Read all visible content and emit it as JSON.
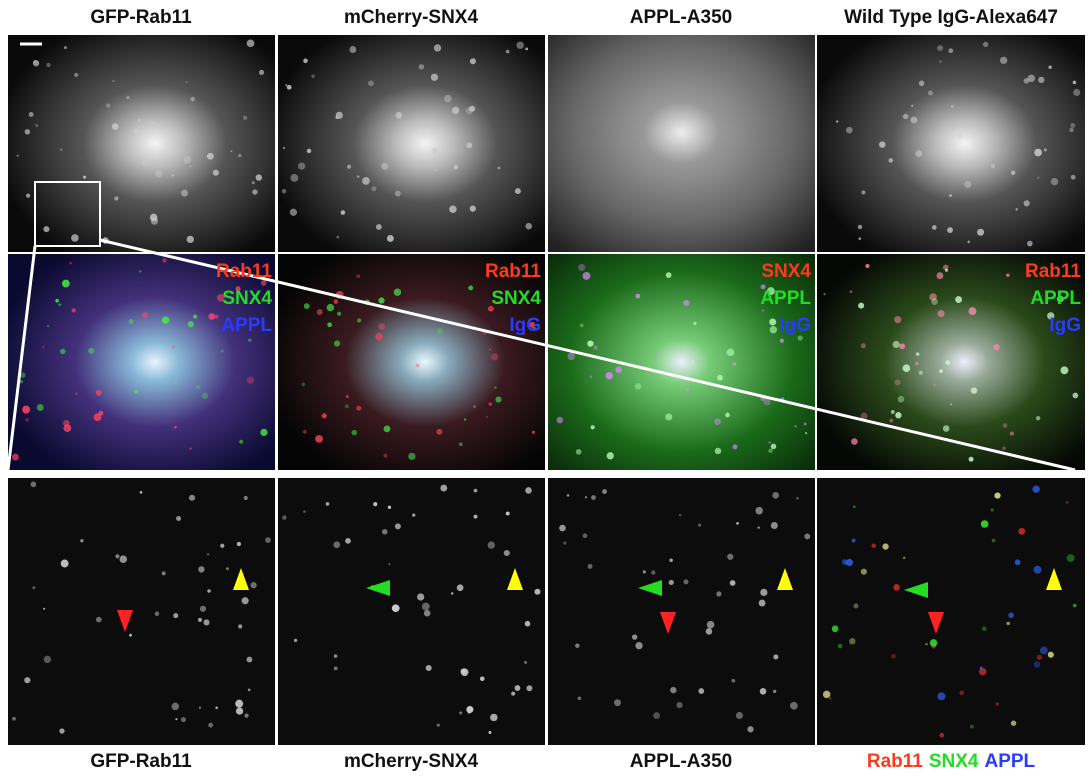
{
  "top_labels": [
    "GFP-Rab11",
    "mCherry-SNX4",
    "APPL-A350",
    "Wild Type IgG-Alexa647"
  ],
  "merge_labels": [
    [
      "Rab11",
      "SNX4",
      "APPL"
    ],
    [
      "Rab11",
      "SNX4",
      "IgG"
    ],
    [
      "SNX4",
      "APPL",
      "IgG"
    ],
    [
      "Rab11",
      "APPL",
      "IgG"
    ]
  ],
  "bottom_labels": [
    "GFP-Rab11",
    "mCherry-SNX4",
    "APPL-A350"
  ],
  "bottom_merge_labels": [
    "Rab11",
    "SNX4",
    "APPL"
  ]
}
